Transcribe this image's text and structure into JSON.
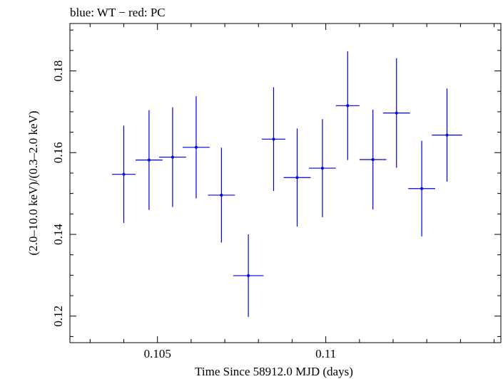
{
  "chart_data": {
    "type": "scatter",
    "title": "blue: WT − red: PC",
    "xlabel": "Time Since 58912.0 MJD (days)",
    "ylabel": "(2.0–10.0 keV)/(0.3–2.0 keV)",
    "xlim": [
      0.1024,
      0.1152
    ],
    "ylim": [
      0.1135,
      0.1916
    ],
    "x_ticks": [
      0.105,
      0.11
    ],
    "x_tick_labels": [
      "0.105",
      "0.11"
    ],
    "y_ticks": [
      0.12,
      0.14,
      0.16,
      0.18
    ],
    "y_tick_labels": [
      "0.12",
      "0.14",
      "0.16",
      "0.18"
    ],
    "grid": false,
    "series": [
      {
        "name": "WT",
        "color": "#0000dd",
        "points": [
          {
            "x": 0.104,
            "xerr": 0.00035,
            "y": 0.1547,
            "yerr": 0.0119
          },
          {
            "x": 0.10475,
            "xerr": 0.0004,
            "y": 0.1582,
            "yerr": 0.0122
          },
          {
            "x": 0.10545,
            "xerr": 0.0004,
            "y": 0.1589,
            "yerr": 0.0122
          },
          {
            "x": 0.10615,
            "xerr": 0.0004,
            "y": 0.1613,
            "yerr": 0.0125
          },
          {
            "x": 0.1069,
            "xerr": 0.0004,
            "y": 0.1496,
            "yerr": 0.0116
          },
          {
            "x": 0.1077,
            "xerr": 0.00045,
            "y": 0.1299,
            "yerr": 0.0101
          },
          {
            "x": 0.10845,
            "xerr": 0.00035,
            "y": 0.1633,
            "yerr": 0.0127
          },
          {
            "x": 0.10915,
            "xerr": 0.0004,
            "y": 0.1539,
            "yerr": 0.012
          },
          {
            "x": 0.1099,
            "xerr": 0.0004,
            "y": 0.1562,
            "yerr": 0.012
          },
          {
            "x": 0.11065,
            "xerr": 0.00035,
            "y": 0.1715,
            "yerr": 0.0133
          },
          {
            "x": 0.1114,
            "xerr": 0.0004,
            "y": 0.1583,
            "yerr": 0.0122
          },
          {
            "x": 0.1121,
            "xerr": 0.0004,
            "y": 0.1697,
            "yerr": 0.0134
          },
          {
            "x": 0.11285,
            "xerr": 0.0004,
            "y": 0.1512,
            "yerr": 0.0117
          },
          {
            "x": 0.1136,
            "xerr": 0.00045,
            "y": 0.1643,
            "yerr": 0.0114
          }
        ]
      }
    ]
  }
}
